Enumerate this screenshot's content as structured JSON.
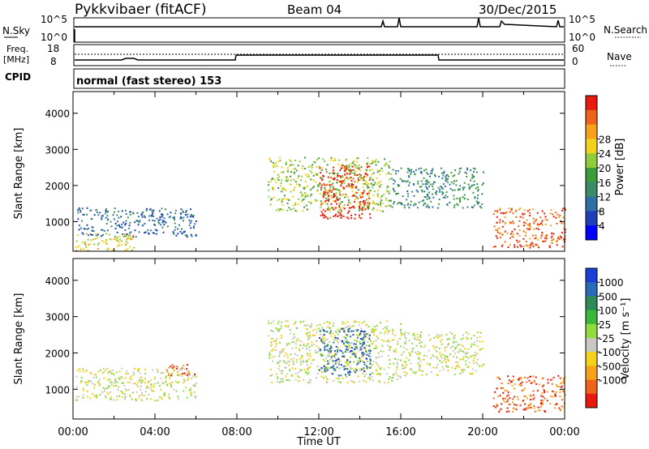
{
  "header": {
    "title": "Pykkvibaer (fitACF)",
    "beam": "Beam 04",
    "date": "30/Dec/2015"
  },
  "strip_labels": {
    "nsky": "N.Sky",
    "nsky_hi": "10^5",
    "nsky_lo": "10^0",
    "nsearch": "N.Search",
    "nsearch_hi": "10^5",
    "nsearch_lo": "10^0",
    "freq_top": "Freq.",
    "freq_unit": "[MHz]",
    "freq_hi": "18",
    "freq_lo": "8",
    "nave": "Nave",
    "nave_hi": "60",
    "nave_lo": "0",
    "cpid": "CPID",
    "cpid_value": "normal (fast stereo) 153"
  },
  "chart_data": [
    {
      "type": "heatmap",
      "panel": "power",
      "xlabel": "",
      "ylabel": "Slant Range [km]",
      "x_ticks": [
        "00:00",
        "04:00",
        "08:00",
        "12:00",
        "16:00",
        "20:00",
        "00:00"
      ],
      "xlim_hours": [
        0,
        24
      ],
      "ylim": [
        180,
        4600
      ],
      "y_ticks": [
        1000,
        2000,
        3000,
        4000
      ],
      "colorbar": {
        "label": "Power [dB]",
        "ticks": [
          "4",
          "8",
          "12",
          "16",
          "20",
          "24",
          "28"
        ],
        "colors": [
          "#0000ff",
          "#1e3fb8",
          "#2f6fa6",
          "#3d8a6a",
          "#3a9d3a",
          "#8fce3a",
          "#f2d21a",
          "#f7a21a",
          "#f0641a",
          "#e81a10"
        ]
      },
      "regions": [
        {
          "t0": 0.2,
          "t1": 6.0,
          "r0": 600,
          "r1": 1400,
          "level": 2
        },
        {
          "t0": 0.1,
          "t1": 3.0,
          "r0": 200,
          "r1": 700,
          "level": 6
        },
        {
          "t0": 9.5,
          "t1": 15.5,
          "r0": 1300,
          "r1": 2800,
          "level": 5
        },
        {
          "t0": 12.0,
          "t1": 14.5,
          "r0": 1100,
          "r1": 2600,
          "level": 9
        },
        {
          "t0": 15.5,
          "t1": 20.0,
          "r0": 1400,
          "r1": 2500,
          "level": 3
        },
        {
          "t0": 20.5,
          "t1": 24.0,
          "r0": 300,
          "r1": 1400,
          "level": 8
        }
      ]
    },
    {
      "type": "heatmap",
      "panel": "velocity",
      "xlabel": "Time UT",
      "ylabel": "Slant Range [km]",
      "x_ticks": [
        "00:00",
        "04:00",
        "08:00",
        "12:00",
        "16:00",
        "20:00",
        "00:00"
      ],
      "xlim_hours": [
        0,
        24
      ],
      "ylim": [
        180,
        4600
      ],
      "y_ticks": [
        1000,
        2000,
        3000,
        4000
      ],
      "colorbar": {
        "label": "Velocity [m s⁻¹]",
        "ticks": [
          "1000",
          "500",
          "100",
          "25",
          "-25",
          "-100",
          "-500",
          "-1000"
        ],
        "colors": [
          "#1a3fd8",
          "#2b6ab8",
          "#2f8a5a",
          "#3ab83a",
          "#8fdc3a",
          "#c8c8c0",
          "#f2d21a",
          "#f7a21a",
          "#f0641a",
          "#e81a10"
        ]
      },
      "regions": [
        {
          "t0": 0.1,
          "t1": 6.0,
          "r0": 700,
          "r1": 1600,
          "level": 5
        },
        {
          "t0": 4.5,
          "t1": 6.0,
          "r0": 1400,
          "r1": 1700,
          "level": 8
        },
        {
          "t0": 9.5,
          "t1": 16.0,
          "r0": 1200,
          "r1": 2900,
          "level": 5
        },
        {
          "t0": 12.0,
          "t1": 14.5,
          "r0": 1400,
          "r1": 2700,
          "level": 1
        },
        {
          "t0": 16.0,
          "t1": 20.0,
          "r0": 1400,
          "r1": 2600,
          "level": 5
        },
        {
          "t0": 20.5,
          "t1": 24.0,
          "r0": 400,
          "r1": 1400,
          "level": 8
        }
      ]
    }
  ]
}
